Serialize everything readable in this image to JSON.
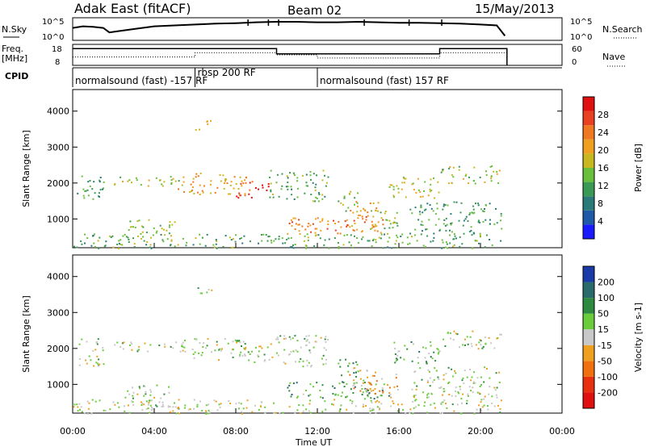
{
  "header": {
    "station": "Adak East (fitACF)",
    "beam": "Beam 02",
    "date": "15/May/2013"
  },
  "chart_data": {
    "type": "heatmap",
    "x_axis": {
      "label": "Time UT",
      "ticks": [
        "00:00",
        "04:00",
        "08:00",
        "12:00",
        "16:00",
        "20:00",
        "00:00"
      ],
      "range_hours": [
        0,
        24
      ]
    },
    "top_panels": {
      "nsky": {
        "label": "N.Sky",
        "ticks": [
          "10^5",
          "10^0"
        ],
        "right_label": "N.Search",
        "right_ticks": [
          "10^5",
          "10^0"
        ],
        "points": [
          [
            0.0,
            0.55
          ],
          [
            0.5,
            0.62
          ],
          [
            1.0,
            0.6
          ],
          [
            1.5,
            0.55
          ],
          [
            1.8,
            0.35
          ],
          [
            2.2,
            0.4
          ],
          [
            3.0,
            0.5
          ],
          [
            4.0,
            0.62
          ],
          [
            5.0,
            0.66
          ],
          [
            6.0,
            0.7
          ],
          [
            7.0,
            0.74
          ],
          [
            8.0,
            0.76
          ],
          [
            9.0,
            0.8
          ],
          [
            10.0,
            0.82
          ],
          [
            11.0,
            0.82
          ],
          [
            12.0,
            0.8
          ],
          [
            13.0,
            0.8
          ],
          [
            14.0,
            0.82
          ],
          [
            15.0,
            0.8
          ],
          [
            16.0,
            0.78
          ],
          [
            17.0,
            0.78
          ],
          [
            18.0,
            0.76
          ],
          [
            19.0,
            0.74
          ],
          [
            20.0,
            0.7
          ],
          [
            20.8,
            0.66
          ],
          [
            21.2,
            0.2
          ]
        ],
        "spikes": [
          8.6,
          9.6,
          10.1,
          14.3,
          16.5,
          18.1
        ]
      },
      "freq": {
        "label": "Freq.",
        "unit": "[MHz]",
        "ticks": [
          "18",
          "8"
        ],
        "right_label": "Nave",
        "right_ticks": [
          "60",
          "0"
        ],
        "freq_steps": [
          [
            0,
            10.0,
            0.8
          ],
          [
            10.0,
            18.0,
            0.55
          ],
          [
            18.0,
            21.3,
            0.8
          ]
        ],
        "nave_steps": [
          [
            0,
            6.0,
            0.4
          ],
          [
            6.0,
            10.0,
            0.6
          ],
          [
            10.0,
            12.0,
            0.5
          ],
          [
            12.0,
            18.0,
            0.35
          ],
          [
            18.0,
            21.3,
            0.6
          ]
        ]
      },
      "cpid": {
        "label": "CPID",
        "segments": [
          {
            "start": 0,
            "text": "normalsound (fast) -157 RF"
          },
          {
            "start": 6.0,
            "text": "rbsp 200 RF"
          },
          {
            "start": 12.0,
            "text": "normalsound (fast) 157 RF"
          }
        ]
      }
    },
    "power_panel": {
      "ylabel": "Slant Range [km]",
      "yticks": [
        1000,
        2000,
        3000,
        4000
      ],
      "ylim": [
        200,
        4600
      ],
      "colorbar_label": "Power [dB]",
      "colorbar_ticks": [
        "4",
        "8",
        "12",
        "16",
        "20",
        "24",
        "28"
      ],
      "colors": [
        "#1a1aff",
        "#1e5aa8",
        "#2a7a7a",
        "#3a9a55",
        "#6abf3a",
        "#c8b820",
        "#f0a020",
        "#f07820",
        "#e84020",
        "#e01010"
      ]
    },
    "velocity_panel": {
      "ylabel": "Slant Range [km]",
      "yticks": [
        1000,
        2000,
        3000,
        4000
      ],
      "ylim": [
        200,
        4600
      ],
      "colorbar_label": "Velocity [m s-1]",
      "colorbar_ticks": [
        "200",
        "100",
        "50",
        "15",
        "-15",
        "-50",
        "-100",
        "-200"
      ],
      "colors": [
        "#1a3aa8",
        "#2a6a6a",
        "#2e8a40",
        "#6acc3a",
        "#c8c8c8",
        "#f0a020",
        "#f07010",
        "#e83010",
        "#e01010"
      ]
    },
    "regions": [
      {
        "t0": 0.2,
        "t1": 1.5,
        "r0": 1500,
        "r1": 2300,
        "power": 0.35,
        "vel": 0.45
      },
      {
        "t0": 2.0,
        "t1": 5.5,
        "r0": 1900,
        "r1": 2200,
        "power": 0.5,
        "vel": 0.45
      },
      {
        "t0": 5.0,
        "t1": 8.5,
        "r0": 1700,
        "r1": 2300,
        "power": 0.65,
        "vel": 0.45
      },
      {
        "t0": 8.0,
        "t1": 9.6,
        "r0": 1600,
        "r1": 2100,
        "power": 0.9,
        "vel": 0.45
      },
      {
        "t0": 9.6,
        "t1": 12.5,
        "r0": 1500,
        "r1": 2400,
        "power": 0.4,
        "vel": 0.45
      },
      {
        "t0": 2.5,
        "t1": 5.0,
        "r0": 400,
        "r1": 1000,
        "power": 0.45,
        "vel": 0.45
      },
      {
        "t0": 6.0,
        "t1": 6.8,
        "r0": 3500,
        "r1": 3800,
        "power": 0.55,
        "vel": 0.45
      },
      {
        "t0": 10.5,
        "t1": 15.5,
        "r0": 600,
        "r1": 1100,
        "power": 0.75,
        "vel": 0.3
      },
      {
        "t0": 13.5,
        "t1": 15.0,
        "r0": 800,
        "r1": 1500,
        "power": 0.65,
        "vel": 0.55
      },
      {
        "t0": 14.5,
        "t1": 16.0,
        "r0": 600,
        "r1": 1300,
        "power": 0.5,
        "vel": 0.62
      },
      {
        "t0": 13.0,
        "t1": 14.0,
        "r0": 1200,
        "r1": 1800,
        "power": 0.5,
        "vel": 0.3
      },
      {
        "t0": 15.5,
        "t1": 18.0,
        "r0": 1600,
        "r1": 2200,
        "power": 0.55,
        "vel": 0.35
      },
      {
        "t0": 18.0,
        "t1": 21.0,
        "r0": 2000,
        "r1": 2500,
        "power": 0.5,
        "vel": 0.45
      },
      {
        "t0": 16.5,
        "t1": 21.0,
        "r0": 600,
        "r1": 1500,
        "power": 0.35,
        "vel": 0.45
      },
      {
        "t0": 0.0,
        "t1": 21.0,
        "r0": 200,
        "r1": 600,
        "power": 0.4,
        "vel": 0.48
      }
    ]
  }
}
